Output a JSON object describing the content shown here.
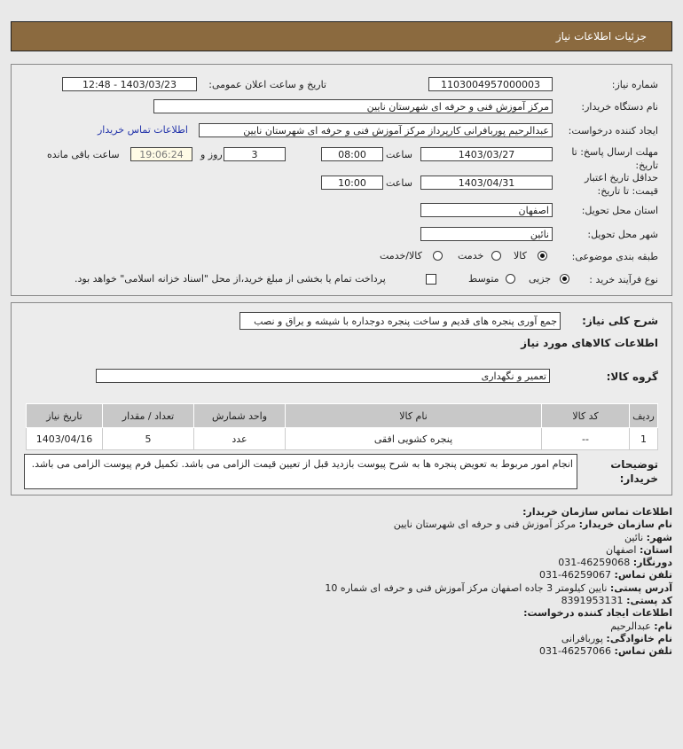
{
  "header": {
    "title": "جزئیات اطلاعات نیاز"
  },
  "form": {
    "need_number_label": "شماره نیاز:",
    "need_number": "1103004957000003",
    "announce_label": "تاریخ و ساعت اعلان عمومی:",
    "announce_value": "1403/03/23 - 12:48",
    "buyer_label": "نام دستگاه خریدار:",
    "buyer": "مرکز آموزش فنی و حرفه ای شهرستان نایین",
    "creator_label": "ایجاد کننده درخواست:",
    "creator": "عبدالرحیم  پوربافرانی کارپرداز مرکز آموزش فنی و حرفه ای شهرستان نایین",
    "contact_link": "اطلاعات تماس خریدار",
    "deadline_label": "مهلت ارسال پاسخ: تا تاریخ:",
    "deadline_date": "1403/03/27",
    "time_label": "ساعت",
    "deadline_time": "08:00",
    "days": "3",
    "days_label": "روز و",
    "remaining": "19:06:24",
    "remaining_label": "ساعت باقی مانده",
    "validity_label": "حداقل تاریخ اعتبار قیمت: تا تاریخ:",
    "validity_date": "1403/04/31",
    "validity_time": "10:00",
    "province_label": "استان محل تحویل:",
    "province": "اصفهان",
    "city_label": "شهر محل تحویل:",
    "city": "نائین",
    "category_label": "طبقه بندی موضوعی:",
    "category_options": [
      "کالا",
      "خدمت",
      "کالا/خدمت"
    ],
    "category_selected": "کالا",
    "process_label": "نوع فرآیند خرید :",
    "process_options": [
      "جزیی",
      "متوسط"
    ],
    "process_selected": "جزیی",
    "payment_note": "پرداخت تمام یا بخشی از مبلغ خرید،از محل \"اسناد خزانه اسلامی\" خواهد بود.",
    "payment_checked": false
  },
  "details": {
    "summary_label": "شرح کلی نیاز:",
    "summary": "جمع آوری پنجره های قدیم و ساخت پنجره دوجداره با شیشه و یراق و نصب",
    "goods_heading": "اطلاعات کالاهای مورد نیاز",
    "group_label": "گروه کالا:",
    "group": "تعمیر و نگهداری",
    "table": {
      "headers": [
        "ردیف",
        "کد کالا",
        "نام کالا",
        "واحد شمارش",
        "تعداد / مقدار",
        "تاریخ نیاز"
      ],
      "rows": [
        [
          "1",
          "--",
          "پنجره کشویی افقی",
          "عدد",
          "5",
          "1403/04/16"
        ]
      ]
    },
    "notes_label": "توضیحات خریدار:",
    "notes": "انجام امور مربوط به تعویض پنجره ها به شرح پیوست بازدید قبل از تعیین قیمت الزامی می باشد. تکمیل فرم پیوست الزامی می باشد."
  },
  "contact": {
    "heading": "اطلاعات تماس سازمان خریدار:",
    "org_label": "نام سازمان خریدار:",
    "org": "مرکز آموزش فنی و حرفه ای شهرستان نایین",
    "city_label": "شهر:",
    "city": "نائین",
    "province_label": "استان:",
    "province": "اصفهان",
    "fax_label": "دورنگار:",
    "fax": "46259068-031",
    "phone_label": "تلفن تماس:",
    "phone": "46259067-031",
    "address_label": "آدرس پستی:",
    "address": "نایین کیلومتر 3 جاده اصفهان مرکز آموزش فنی و حرفه ای شماره 10",
    "postal_label": "کد پستی:",
    "postal": "8391953131",
    "creator_heading": "اطلاعات ایجاد کننده درخواست:",
    "name_label": "نام:",
    "name": "عبدالرحیم",
    "family_label": "نام خانوادگی:",
    "family": "پوربافرانی",
    "creator_phone_label": "تلفن تماس:",
    "creator_phone": "46257066-031"
  }
}
